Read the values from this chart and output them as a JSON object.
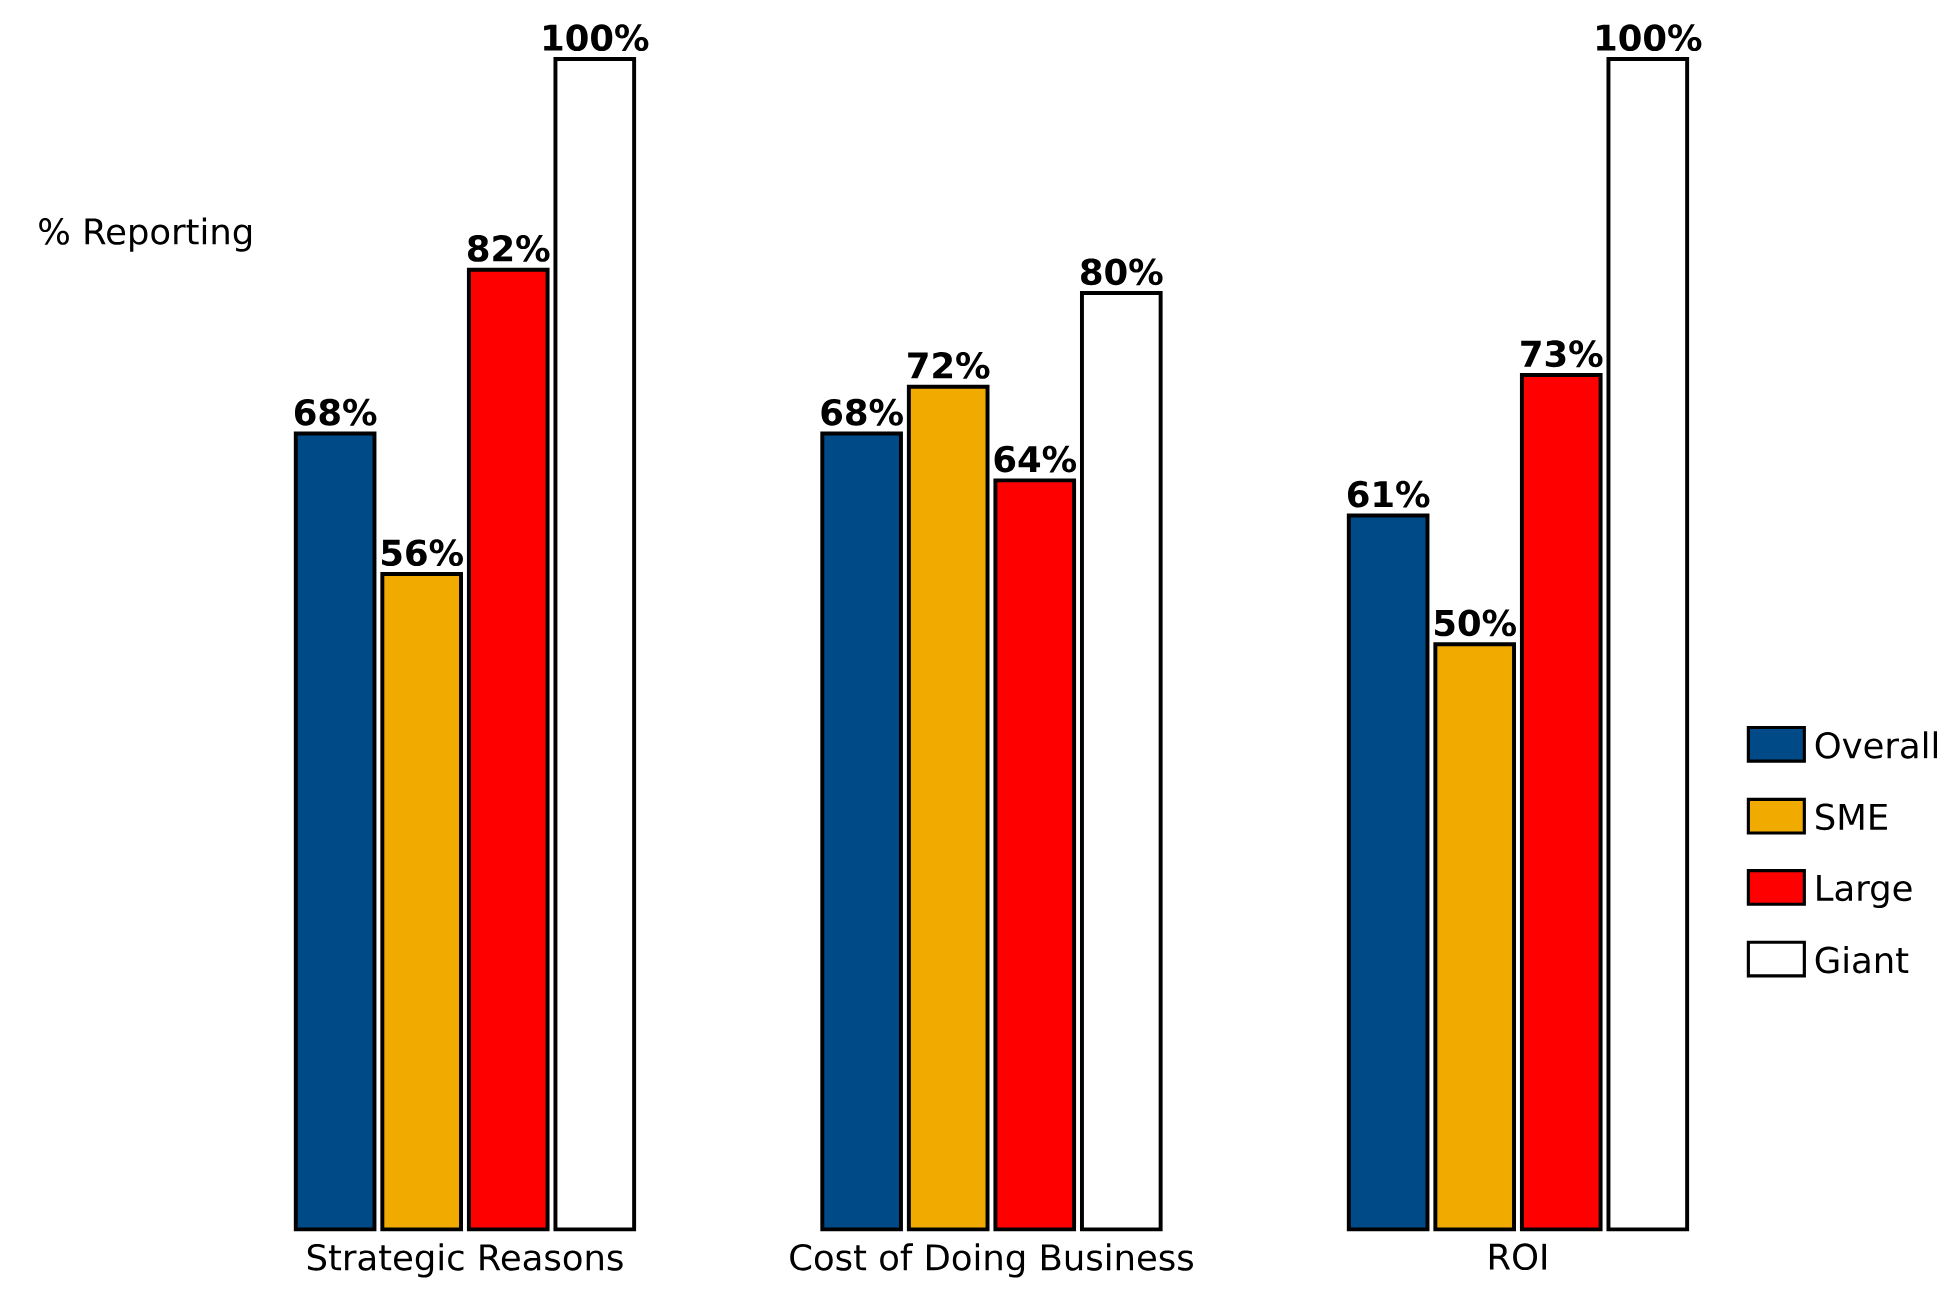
{
  "chart_data": {
    "type": "bar",
    "ylabel": "% Reporting",
    "categories": [
      "Strategic Reasons",
      "Cost of Doing Business",
      "ROI"
    ],
    "series": [
      {
        "name": "Overall",
        "color": "#004a87",
        "values": [
          68,
          68,
          61
        ],
        "value_labels": [
          "68%",
          "68%",
          "61%"
        ]
      },
      {
        "name": "SME",
        "color": "#f0aa00",
        "values": [
          56,
          72,
          50
        ],
        "value_labels": [
          "56%",
          "72%",
          "50%"
        ]
      },
      {
        "name": "Large",
        "color": "#ff0000",
        "values": [
          82,
          64,
          73
        ],
        "value_labels": [
          "82%",
          "64%",
          "73%"
        ]
      },
      {
        "name": "Giant",
        "color": "#ffffff",
        "values": [
          100,
          80,
          100
        ],
        "value_labels": [
          "100%",
          "80%",
          "100%"
        ]
      }
    ],
    "legend": "right",
    "grid": false
  }
}
